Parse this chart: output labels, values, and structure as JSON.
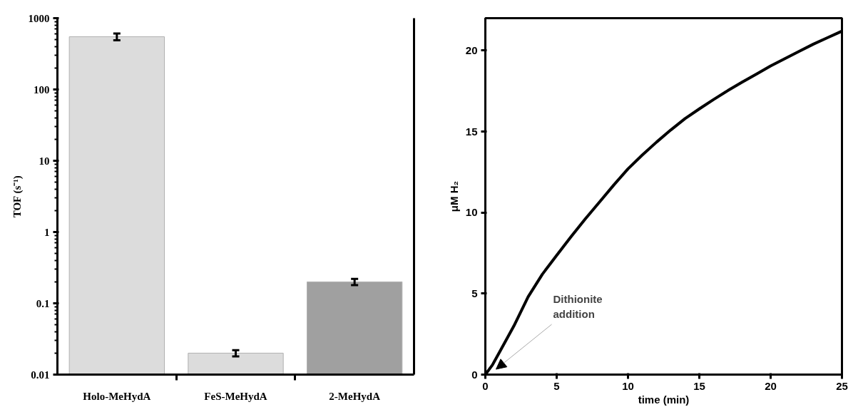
{
  "chart_data": [
    {
      "type": "bar",
      "ylabel": "TOF (s⁻¹)",
      "categories": [
        "Holo-MeHydA",
        "FeS-MeHydA",
        "2-MeHydA"
      ],
      "values": [
        550,
        0.02,
        0.2
      ],
      "errors": [
        [
          490,
          610
        ],
        [
          0.018,
          0.022
        ],
        [
          0.18,
          0.22
        ]
      ],
      "colors": [
        "#dcdcdc",
        "#dcdcdc",
        "#a0a0a0"
      ],
      "log": true,
      "ylim": [
        0.01,
        1000
      ],
      "yticks": [
        0.01,
        0.1,
        1,
        10,
        100,
        1000
      ],
      "grid": false
    },
    {
      "type": "line",
      "xlabel": "time (min)",
      "ylabel": "μM H₂",
      "x": [
        0,
        0.5,
        1,
        2,
        3,
        4,
        5,
        6,
        7,
        8,
        9,
        10,
        11,
        12,
        13,
        14,
        15,
        16,
        17,
        18,
        19,
        20,
        21,
        22,
        23,
        24,
        25
      ],
      "series": [
        {
          "color": "#000000",
          "values": [
            0,
            0.6,
            1.4,
            3.0,
            4.8,
            6.2,
            7.36,
            8.5,
            9.6,
            10.65,
            11.7,
            12.7,
            13.55,
            14.35,
            15.1,
            15.8,
            16.4,
            16.98,
            17.53,
            18.05,
            18.55,
            19.05,
            19.5,
            19.95,
            20.4,
            20.8,
            21.2
          ]
        }
      ],
      "xlim": [
        0,
        25
      ],
      "ylim": [
        0,
        22
      ],
      "xticks": [
        0,
        5,
        10,
        15,
        20,
        25
      ],
      "yticks": [
        0,
        5,
        10,
        15,
        20
      ],
      "grid": false,
      "marker": "none",
      "line_style": "solid",
      "annotations": [
        "Dithionite\naddition"
      ]
    }
  ]
}
